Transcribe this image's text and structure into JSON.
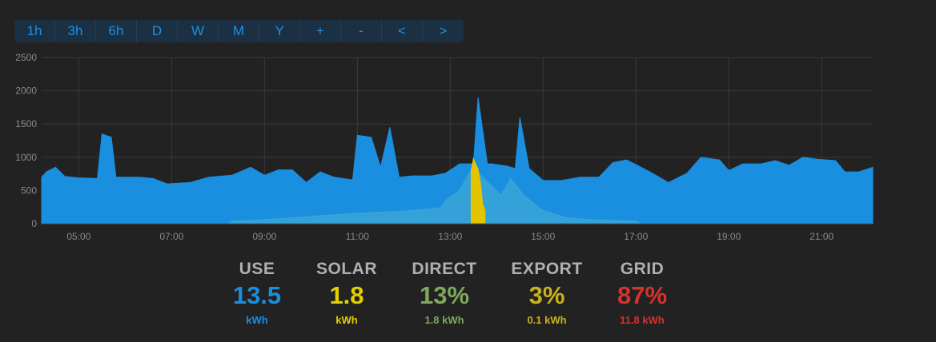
{
  "toolbar": {
    "buttons": [
      "1h",
      "3h",
      "6h",
      "D",
      "W",
      "M",
      "Y",
      "+",
      "-",
      "<",
      ">"
    ]
  },
  "chart_data": {
    "type": "area",
    "y_ticks": [
      "0",
      "500",
      "1000",
      "1500",
      "2000",
      "2500"
    ],
    "ylim": [
      0,
      2500
    ],
    "x_ticks": [
      "05:00",
      "07:00",
      "09:00",
      "11:00",
      "13:00",
      "15:00",
      "17:00",
      "19:00",
      "21:00"
    ],
    "xlim_hours": [
      4.2,
      22.1
    ],
    "grid": true,
    "series": [
      {
        "color": "#1a8fe0",
        "points": [
          [
            4.2,
            700
          ],
          [
            4.3,
            780
          ],
          [
            4.5,
            850
          ],
          [
            4.7,
            710
          ],
          [
            5.0,
            690
          ],
          [
            5.4,
            680
          ],
          [
            5.5,
            1350
          ],
          [
            5.7,
            1300
          ],
          [
            5.8,
            700
          ],
          [
            6.3,
            700
          ],
          [
            6.6,
            680
          ],
          [
            6.9,
            600
          ],
          [
            7.4,
            620
          ],
          [
            7.8,
            700
          ],
          [
            8.3,
            730
          ],
          [
            8.7,
            850
          ],
          [
            9.0,
            730
          ],
          [
            9.3,
            810
          ],
          [
            9.6,
            810
          ],
          [
            9.9,
            620
          ],
          [
            10.2,
            780
          ],
          [
            10.5,
            700
          ],
          [
            10.9,
            660
          ],
          [
            11.0,
            1330
          ],
          [
            11.3,
            1300
          ],
          [
            11.5,
            850
          ],
          [
            11.7,
            1450
          ],
          [
            11.9,
            700
          ],
          [
            12.2,
            720
          ],
          [
            12.6,
            720
          ],
          [
            12.9,
            760
          ],
          [
            13.2,
            900
          ],
          [
            13.5,
            900
          ],
          [
            13.6,
            1900
          ],
          [
            13.8,
            900
          ],
          [
            13.9,
            900
          ],
          [
            14.2,
            870
          ],
          [
            14.4,
            830
          ],
          [
            14.5,
            1600
          ],
          [
            14.7,
            830
          ],
          [
            15.0,
            650
          ],
          [
            15.4,
            650
          ],
          [
            15.8,
            700
          ],
          [
            16.2,
            700
          ],
          [
            16.5,
            920
          ],
          [
            16.8,
            960
          ],
          [
            17.3,
            780
          ],
          [
            17.7,
            620
          ],
          [
            18.1,
            760
          ],
          [
            18.4,
            1000
          ],
          [
            18.8,
            960
          ],
          [
            19.0,
            800
          ],
          [
            19.3,
            900
          ],
          [
            19.7,
            900
          ],
          [
            20.0,
            950
          ],
          [
            20.3,
            880
          ],
          [
            20.6,
            1000
          ],
          [
            20.9,
            970
          ],
          [
            21.3,
            950
          ],
          [
            21.5,
            780
          ],
          [
            21.8,
            780
          ],
          [
            22.1,
            850
          ]
        ]
      },
      {
        "color": "#3aa6d6",
        "points": [
          [
            8.2,
            0
          ],
          [
            8.3,
            40
          ],
          [
            9.0,
            60
          ],
          [
            10.0,
            110
          ],
          [
            11.0,
            160
          ],
          [
            12.0,
            190
          ],
          [
            12.8,
            240
          ],
          [
            12.9,
            350
          ],
          [
            13.2,
            500
          ],
          [
            13.5,
            870
          ],
          [
            13.7,
            700
          ],
          [
            13.9,
            560
          ],
          [
            14.1,
            430
          ],
          [
            14.3,
            680
          ],
          [
            14.6,
            420
          ],
          [
            15.0,
            200
          ],
          [
            15.5,
            90
          ],
          [
            16.0,
            60
          ],
          [
            17.0,
            40
          ],
          [
            17.1,
            0
          ]
        ]
      },
      {
        "color": "#e2c400",
        "points": [
          [
            13.45,
            800
          ],
          [
            13.5,
            980
          ],
          [
            13.55,
            900
          ],
          [
            13.6,
            820
          ],
          [
            13.65,
            620
          ],
          [
            13.7,
            300
          ],
          [
            13.75,
            200
          ]
        ]
      }
    ]
  },
  "stats": [
    {
      "label": "USE",
      "value": "13.5",
      "sub": "kWh",
      "color": "#1a8fe0"
    },
    {
      "label": "SOLAR",
      "value": "1.8",
      "sub": "kWh",
      "color": "#e2d000"
    },
    {
      "label": "DIRECT",
      "value": "13%",
      "sub": "1.8 kWh",
      "color": "#7fa85a"
    },
    {
      "label": "EXPORT",
      "value": "3%",
      "sub": "0.1 kWh",
      "color": "#c9b21a"
    },
    {
      "label": "GRID",
      "value": "87%",
      "sub": "11.8 kWh",
      "color": "#d8312e"
    }
  ]
}
